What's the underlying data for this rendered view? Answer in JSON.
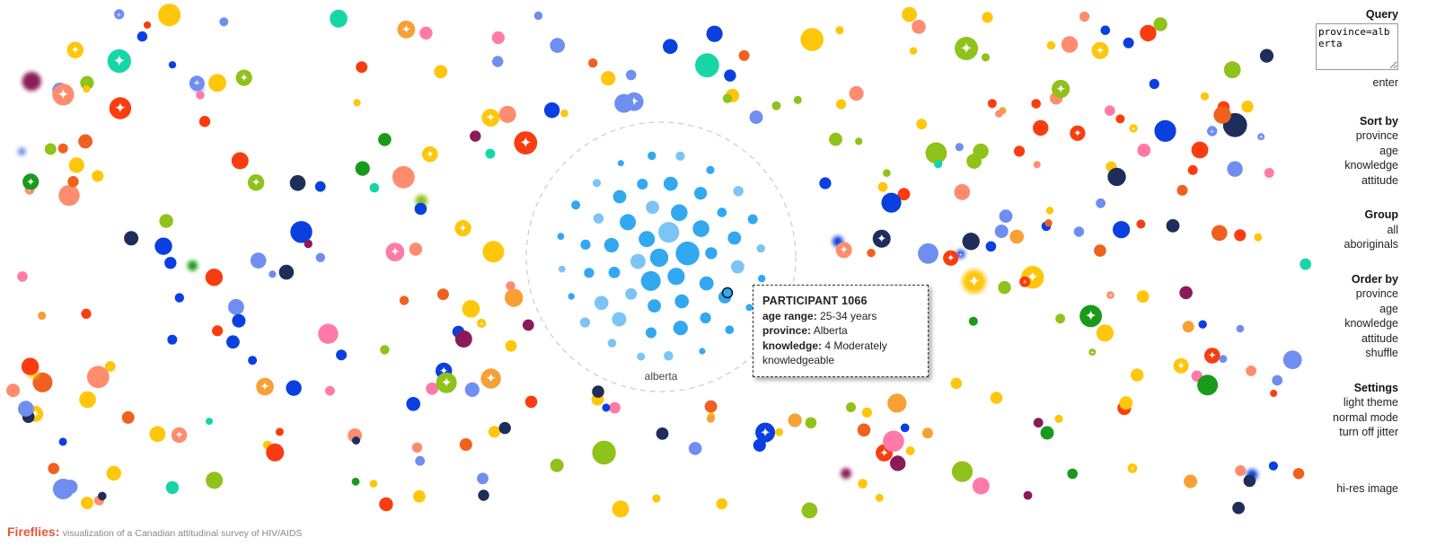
{
  "panel": {
    "query": {
      "title": "Query",
      "value": "province=alberta",
      "enter_label": "enter"
    },
    "sort": {
      "title": "Sort by",
      "options": [
        "province",
        "age",
        "knowledge",
        "attitude"
      ]
    },
    "group": {
      "title": "Group",
      "options": [
        "all",
        "aboriginals"
      ]
    },
    "order": {
      "title": "Order by",
      "options": [
        "province",
        "age",
        "knowledge",
        "attitude",
        "shuffle"
      ]
    },
    "settings": {
      "title": "Settings",
      "options": [
        "light theme",
        "normal mode",
        "turn off jitter"
      ]
    },
    "hires_label": "hi-res image"
  },
  "cluster": {
    "label": "alberta"
  },
  "tooltip": {
    "title": "PARTICIPANT 1066",
    "age_label": "age range:",
    "age_value": "25-34 years",
    "province_label": "province:",
    "province_value": "Alberta",
    "knowledge_label": "knowledge:",
    "knowledge_value": "4 Moderately knowledgeable"
  },
  "footer": {
    "brand": "Fireflies:",
    "description": "visualization of a Canadian attitudinal survey of HIV/AIDS"
  },
  "colors": {
    "cluster": "#31a8f0",
    "palette": [
      "#0a3fe0",
      "#f0601e",
      "#fa3d10",
      "#ffc60a",
      "#8fc21a",
      "#6f8ef0",
      "#ff8c6e",
      "#ff7aa8",
      "#1a9a1a",
      "#f7a035",
      "#16d6a8",
      "#1f2d5a",
      "#8b1a5a"
    ],
    "brand": "#e8553a"
  }
}
